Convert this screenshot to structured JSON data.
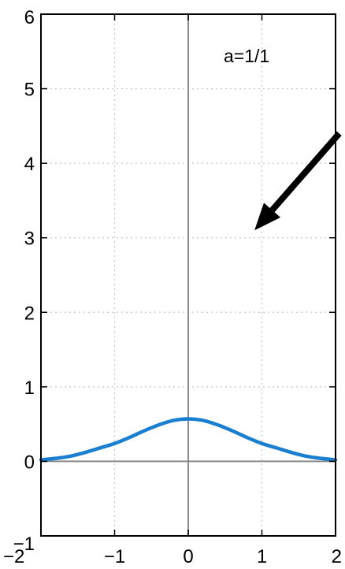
{
  "chart_data": {
    "type": "line",
    "title": "",
    "xlabel": "",
    "ylabel": "",
    "xlim": [
      -2,
      2
    ],
    "ylim": [
      -1,
      6
    ],
    "x_ticks": [
      -2,
      -1,
      0,
      1,
      2
    ],
    "y_ticks": [
      -1,
      0,
      1,
      2,
      3,
      4,
      5,
      6
    ],
    "x_tick_labels": [
      "−2",
      "−1",
      "0",
      "1",
      "2"
    ],
    "y_tick_labels": [
      "−1",
      "0",
      "1",
      "2",
      "3",
      "4",
      "5",
      "6"
    ],
    "grid": true,
    "grid_style": "dotted",
    "zero_axes": true,
    "series": [
      {
        "color": "#1a7fd0",
        "x": [
          -2.0,
          -1.8,
          -1.6,
          -1.4,
          -1.2,
          -1.0,
          -0.8,
          -0.6,
          -0.4,
          -0.2,
          0.0,
          0.2,
          0.4,
          0.6,
          0.8,
          1.0,
          1.2,
          1.4,
          1.6,
          1.8,
          2.0
        ],
        "y": [
          0.02,
          0.04,
          0.07,
          0.12,
          0.18,
          0.24,
          0.32,
          0.41,
          0.49,
          0.55,
          0.57,
          0.55,
          0.49,
          0.41,
          0.32,
          0.24,
          0.18,
          0.12,
          0.07,
          0.04,
          0.02
        ]
      }
    ],
    "annotations": [
      {
        "id": "label",
        "text": "a=1/1"
      }
    ],
    "arrow": {
      "from": [
        2.05,
        4.4
      ],
      "to": [
        0.9,
        3.1
      ],
      "color": "#000000"
    },
    "colors": {
      "axis": "#8a8a8a",
      "grid": "#c8c8c8",
      "frame": "#000000"
    }
  }
}
